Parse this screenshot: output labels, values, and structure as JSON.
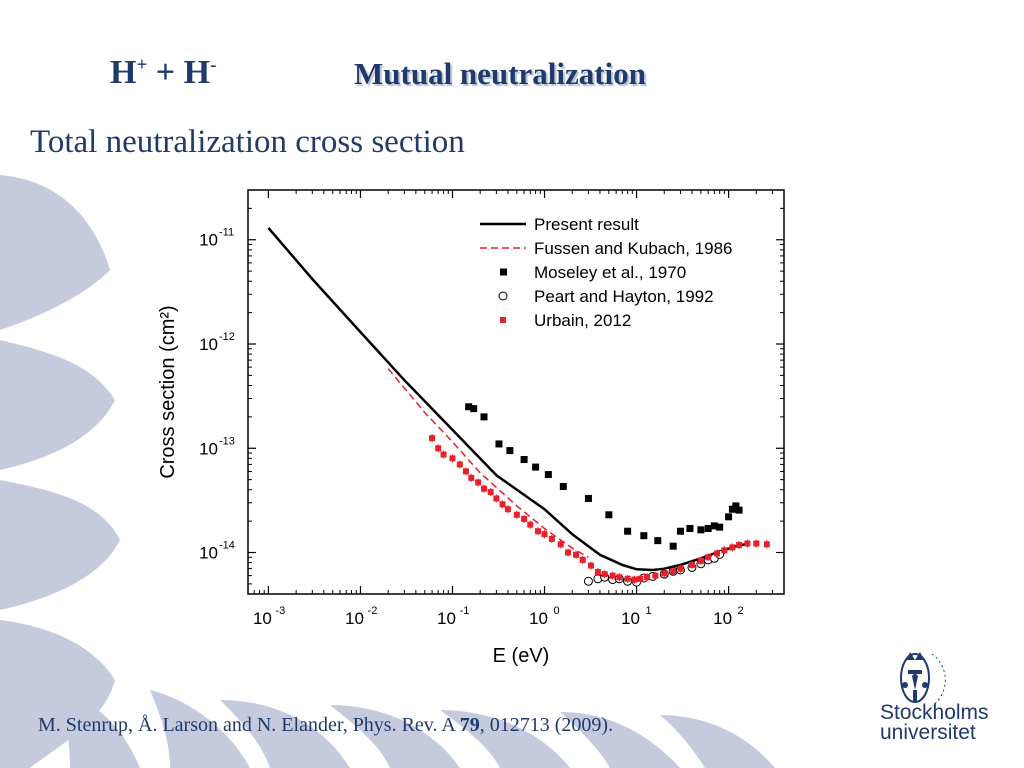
{
  "slide": {
    "title_formula": {
      "base1": "H",
      "sup1": "+",
      "mid": " + H",
      "sup2": "-"
    },
    "title": "Mutual neutralization",
    "subtitle": "Total neutralization cross section",
    "citation": {
      "pre": "M. Stenrup, Å. Larson and N. Elander, Phys. Rev. A ",
      "bold": "79",
      "post": ", 012713 (2009)."
    },
    "logo": {
      "line1": "Stockholms",
      "line2": "universitet"
    },
    "colors": {
      "title": "#1f3a6b",
      "deco": "#c5cbdd"
    }
  },
  "chart_data": {
    "type": "scatter",
    "xlabel": "E (eV)",
    "ylabel": "Cross section (cm²)",
    "xscale": "log",
    "yscale": "log",
    "xlim": [
      0.0006,
      400
    ],
    "ylim": [
      4e-15,
      3e-11
    ],
    "xticks": [
      0.001,
      0.01,
      0.1,
      1,
      10,
      100
    ],
    "xtick_labels": [
      {
        "b": "10",
        "e": "-3"
      },
      {
        "b": "10",
        "e": "-2"
      },
      {
        "b": "10",
        "e": "-1"
      },
      {
        "b": "10",
        "e": "0"
      },
      {
        "b": "10",
        "e": "1"
      },
      {
        "b": "10",
        "e": "2"
      }
    ],
    "yticks": [
      1e-14,
      1e-13,
      1e-12,
      1e-11
    ],
    "ytick_labels": [
      {
        "b": "10",
        "e": "-14"
      },
      {
        "b": "10",
        "e": "-13"
      },
      {
        "b": "10",
        "e": "-12"
      },
      {
        "b": "10",
        "e": "-11"
      }
    ],
    "legend_position": "top-right",
    "series": [
      {
        "name": "Present result",
        "kind": "line",
        "color": "#000000",
        "x": [
          0.001,
          0.003,
          0.01,
          0.03,
          0.1,
          0.3,
          1,
          2,
          4,
          7,
          10,
          15,
          20,
          30,
          50,
          80,
          120,
          150
        ],
        "y": [
          1.3e-11,
          4.2e-12,
          1.3e-12,
          4.5e-13,
          1.5e-13,
          5.5e-14,
          2.6e-14,
          1.5e-14,
          9.5e-15,
          7.6e-15,
          6.9e-15,
          6.8e-15,
          7e-15,
          7.6e-15,
          8.8e-15,
          1.02e-14,
          1.15e-14,
          1.2e-14
        ]
      },
      {
        "name": "Fussen and Kubach, 1986",
        "kind": "dashed",
        "color": "#e8202a",
        "x": [
          0.02,
          0.05,
          0.1,
          0.2,
          0.5,
          1,
          2,
          3
        ],
        "y": [
          5.8e-13,
          2.2e-13,
          1.15e-13,
          5.8e-14,
          2.8e-14,
          1.7e-14,
          1.1e-14,
          9e-15
        ]
      },
      {
        "name": "Moseley et al., 1970",
        "kind": "square",
        "color": "#000000",
        "x": [
          0.15,
          0.17,
          0.22,
          0.32,
          0.42,
          0.6,
          0.8,
          1.1,
          1.6,
          3,
          5,
          8,
          12,
          17,
          25,
          30,
          38,
          50,
          60,
          70,
          80,
          100,
          110,
          120,
          130
        ],
        "y": [
          2.5e-13,
          2.4e-13,
          2e-13,
          1.1e-13,
          9.5e-14,
          7.8e-14,
          6.6e-14,
          5.6e-14,
          4.3e-14,
          3.3e-14,
          2.3e-14,
          1.6e-14,
          1.45e-14,
          1.3e-14,
          1.15e-14,
          1.6e-14,
          1.7e-14,
          1.65e-14,
          1.7e-14,
          1.8e-14,
          1.75e-14,
          2.2e-14,
          2.6e-14,
          2.8e-14,
          2.55e-14
        ]
      },
      {
        "name": "Peart and Hayton, 1992",
        "kind": "circle",
        "color": "#000000",
        "x": [
          3,
          3.8,
          4.5,
          5.5,
          6.5,
          8,
          10,
          12,
          15,
          20,
          25,
          30,
          40,
          50,
          60,
          70,
          80
        ],
        "y": [
          5.3e-15,
          5.6e-15,
          5.8e-15,
          5.5e-15,
          5.6e-15,
          5.3e-15,
          5.2e-15,
          5.7e-15,
          5.9e-15,
          6.2e-15,
          6.6e-15,
          6.8e-15,
          7.2e-15,
          7.8e-15,
          8.5e-15,
          8.8e-15,
          9.6e-15
        ]
      },
      {
        "name": "Urbain, 2012",
        "kind": "redsquare",
        "color": "#e8202a",
        "x": [
          0.06,
          0.07,
          0.08,
          0.1,
          0.12,
          0.14,
          0.16,
          0.19,
          0.22,
          0.26,
          0.3,
          0.35,
          0.4,
          0.5,
          0.6,
          0.7,
          0.85,
          1,
          1.2,
          1.5,
          1.8,
          2.2,
          2.6,
          3.2,
          3.8,
          4.5,
          5.5,
          6.5,
          8,
          9.5,
          11,
          13,
          16,
          20,
          25,
          30,
          40,
          50,
          60,
          75,
          90,
          110,
          130,
          160,
          200,
          260
        ],
        "y": [
          1.25e-13,
          1e-13,
          8.7e-14,
          8e-14,
          7e-14,
          6e-14,
          5.2e-14,
          4.7e-14,
          4.1e-14,
          3.8e-14,
          3.3e-14,
          2.9e-14,
          2.6e-14,
          2.3e-14,
          2.1e-14,
          1.85e-14,
          1.6e-14,
          1.5e-14,
          1.35e-14,
          1.2e-14,
          1e-14,
          9.5e-15,
          8.5e-15,
          7.5e-15,
          6.5e-15,
          6.2e-15,
          6e-15,
          5.8e-15,
          5.6e-15,
          5.5e-15,
          5.6e-15,
          5.8e-15,
          6e-15,
          6.3e-15,
          6.6e-15,
          7e-15,
          7.6e-15,
          8.3e-15,
          9e-15,
          9.8e-15,
          1.05e-14,
          1.12e-14,
          1.18e-14,
          1.22e-14,
          1.22e-14,
          1.2e-14
        ]
      }
    ]
  }
}
